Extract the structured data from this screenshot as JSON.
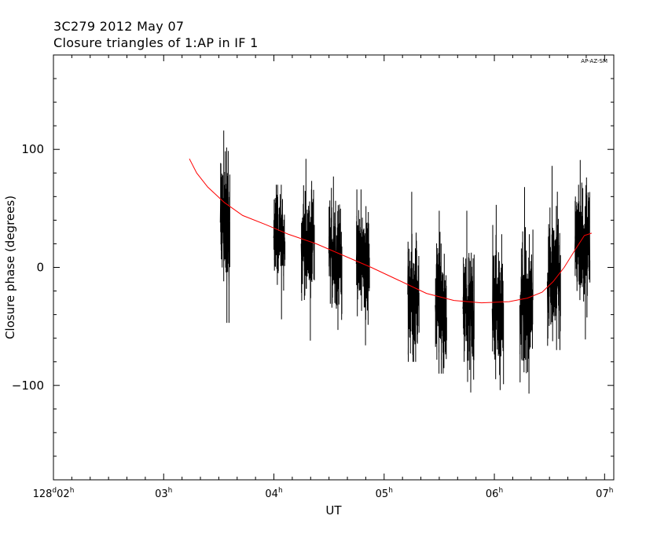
{
  "header": {
    "line1": "3C279  2012 May 07",
    "line2": "Closure triangles of 1:AP in IF 1"
  },
  "chart_data": {
    "type": "line",
    "title": "3C279  2012 May 07",
    "subtitle": "Closure triangles of 1:AP in IF 1",
    "corner_label": "AP-AZ-SM",
    "xlabel": "UT",
    "ylabel": "Closure phase  (degrees)",
    "xlim": [
      "02:00",
      "07:05"
    ],
    "ylim": [
      -180,
      180
    ],
    "x_ticks": [
      {
        "main": "128",
        "sup1": "d",
        "mid": "02",
        "sup2": "h",
        "t": "02:00"
      },
      {
        "main": "03",
        "sup1": "h",
        "t": "03:00"
      },
      {
        "main": "04",
        "sup1": "h",
        "t": "04:00"
      },
      {
        "main": "05",
        "sup1": "h",
        "t": "05:00"
      },
      {
        "main": "06",
        "sup1": "h",
        "t": "06:00"
      },
      {
        "main": "07",
        "sup1": "h",
        "t": "07:00"
      }
    ],
    "y_ticks": [
      100,
      0,
      -100
    ],
    "scans": [
      {
        "start": "03:31",
        "end": "03:36",
        "center": 38,
        "spread": 38,
        "min": -47,
        "max": 116
      },
      {
        "start": "04:00",
        "end": "04:06",
        "center": 25,
        "spread": 25,
        "min": -44,
        "max": 70
      },
      {
        "start": "04:15",
        "end": "04:22",
        "center": 20,
        "spread": 28,
        "min": -62,
        "max": 92
      },
      {
        "start": "04:30",
        "end": "04:37",
        "center": 12,
        "spread": 28,
        "min": -53,
        "max": 77
      },
      {
        "start": "04:45",
        "end": "04:52",
        "center": 3,
        "spread": 30,
        "min": -66,
        "max": 66
      },
      {
        "start": "05:13",
        "end": "05:19",
        "center": -23,
        "spread": 32,
        "min": -80,
        "max": 64
      },
      {
        "start": "05:28",
        "end": "05:34",
        "center": -32,
        "spread": 32,
        "min": -90,
        "max": 48
      },
      {
        "start": "05:43",
        "end": "05:49",
        "center": -35,
        "spread": 35,
        "min": -106,
        "max": 48
      },
      {
        "start": "05:59",
        "end": "06:05",
        "center": -35,
        "spread": 35,
        "min": -104,
        "max": 53
      },
      {
        "start": "06:14",
        "end": "06:21",
        "center": -32,
        "spread": 33,
        "min": -107,
        "max": 68
      },
      {
        "start": "06:29",
        "end": "06:36",
        "center": -12,
        "spread": 35,
        "min": -70,
        "max": 86
      },
      {
        "start": "06:44",
        "end": "06:52",
        "center": 15,
        "spread": 32,
        "min": -61,
        "max": 91
      }
    ],
    "model": {
      "color": "#ff0000",
      "x": [
        "03:14",
        "03:18",
        "03:24",
        "03:33",
        "03:43",
        "03:56",
        "04:08",
        "04:23",
        "04:38",
        "04:53",
        "05:08",
        "05:23",
        "05:38",
        "05:53",
        "06:08",
        "06:18",
        "06:26",
        "06:32",
        "06:38",
        "06:44",
        "06:49",
        "06:53"
      ],
      "y": [
        92,
        80,
        68,
        55,
        44,
        36,
        28,
        20,
        10,
        0,
        -11,
        -22,
        -28,
        -30,
        -29,
        -26,
        -21,
        -12,
        0,
        15,
        27,
        29
      ]
    }
  }
}
